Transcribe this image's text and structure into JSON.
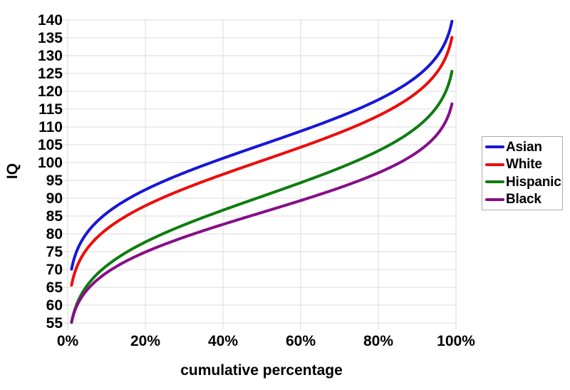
{
  "chart_data": {
    "type": "line",
    "title": "",
    "xlabel": "cumulative percentage",
    "ylabel": "IQ",
    "xlim_percent": [
      0,
      100
    ],
    "ylim": [
      55,
      140
    ],
    "ytick_step": 5,
    "xticks": [
      {
        "value": 0,
        "label": "0%"
      },
      {
        "value": 20,
        "label": "20%"
      },
      {
        "value": 40,
        "label": "40%"
      },
      {
        "value": 60,
        "label": "60%"
      },
      {
        "value": 80,
        "label": "80%"
      },
      {
        "value": 100,
        "label": "100%"
      }
    ],
    "grid": true,
    "legend_position": "right",
    "curve_percent_range": [
      1,
      99
    ],
    "series": [
      {
        "name": "Asian",
        "color": "#1616d8",
        "mean": 105,
        "sd": 15,
        "percentiles": {
          "p1": 70.1,
          "p5": 80.3,
          "p10": 85.8,
          "p25": 94.9,
          "p50": 105.0,
          "p75": 115.1,
          "p90": 124.2,
          "p95": 129.7,
          "p99": 139.9
        }
      },
      {
        "name": "White",
        "color": "#ec0d0d",
        "mean": 100.5,
        "sd": 15,
        "percentiles": {
          "p1": 65.6,
          "p5": 75.8,
          "p10": 81.3,
          "p25": 90.4,
          "p50": 100.5,
          "p75": 110.6,
          "p90": 119.7,
          "p95": 125.2,
          "p99": 135.4
        }
      },
      {
        "name": "Hispanic",
        "color": "#0e7c10",
        "mean": 90.5,
        "sd": 15.2,
        "percentiles": {
          "p1": 55.1,
          "p5": 65.5,
          "p10": 71.0,
          "p25": 80.3,
          "p50": 90.5,
          "p75": 100.8,
          "p90": 110.0,
          "p95": 115.5,
          "p99": 125.9
        }
      },
      {
        "name": "Black",
        "color": "#870e87",
        "mean": 86,
        "sd": 13.2,
        "percentiles": {
          "p1": 55.3,
          "p5": 64.3,
          "p10": 69.1,
          "p25": 77.1,
          "p50": 86.0,
          "p75": 94.9,
          "p90": 102.9,
          "p95": 107.7,
          "p99": 116.7
        }
      }
    ],
    "colors": {
      "background": "#ffffff",
      "grid": "#dbdbdb",
      "axis": "#dbdbdb",
      "text": "#000000",
      "legend_border": "#ababab"
    }
  }
}
